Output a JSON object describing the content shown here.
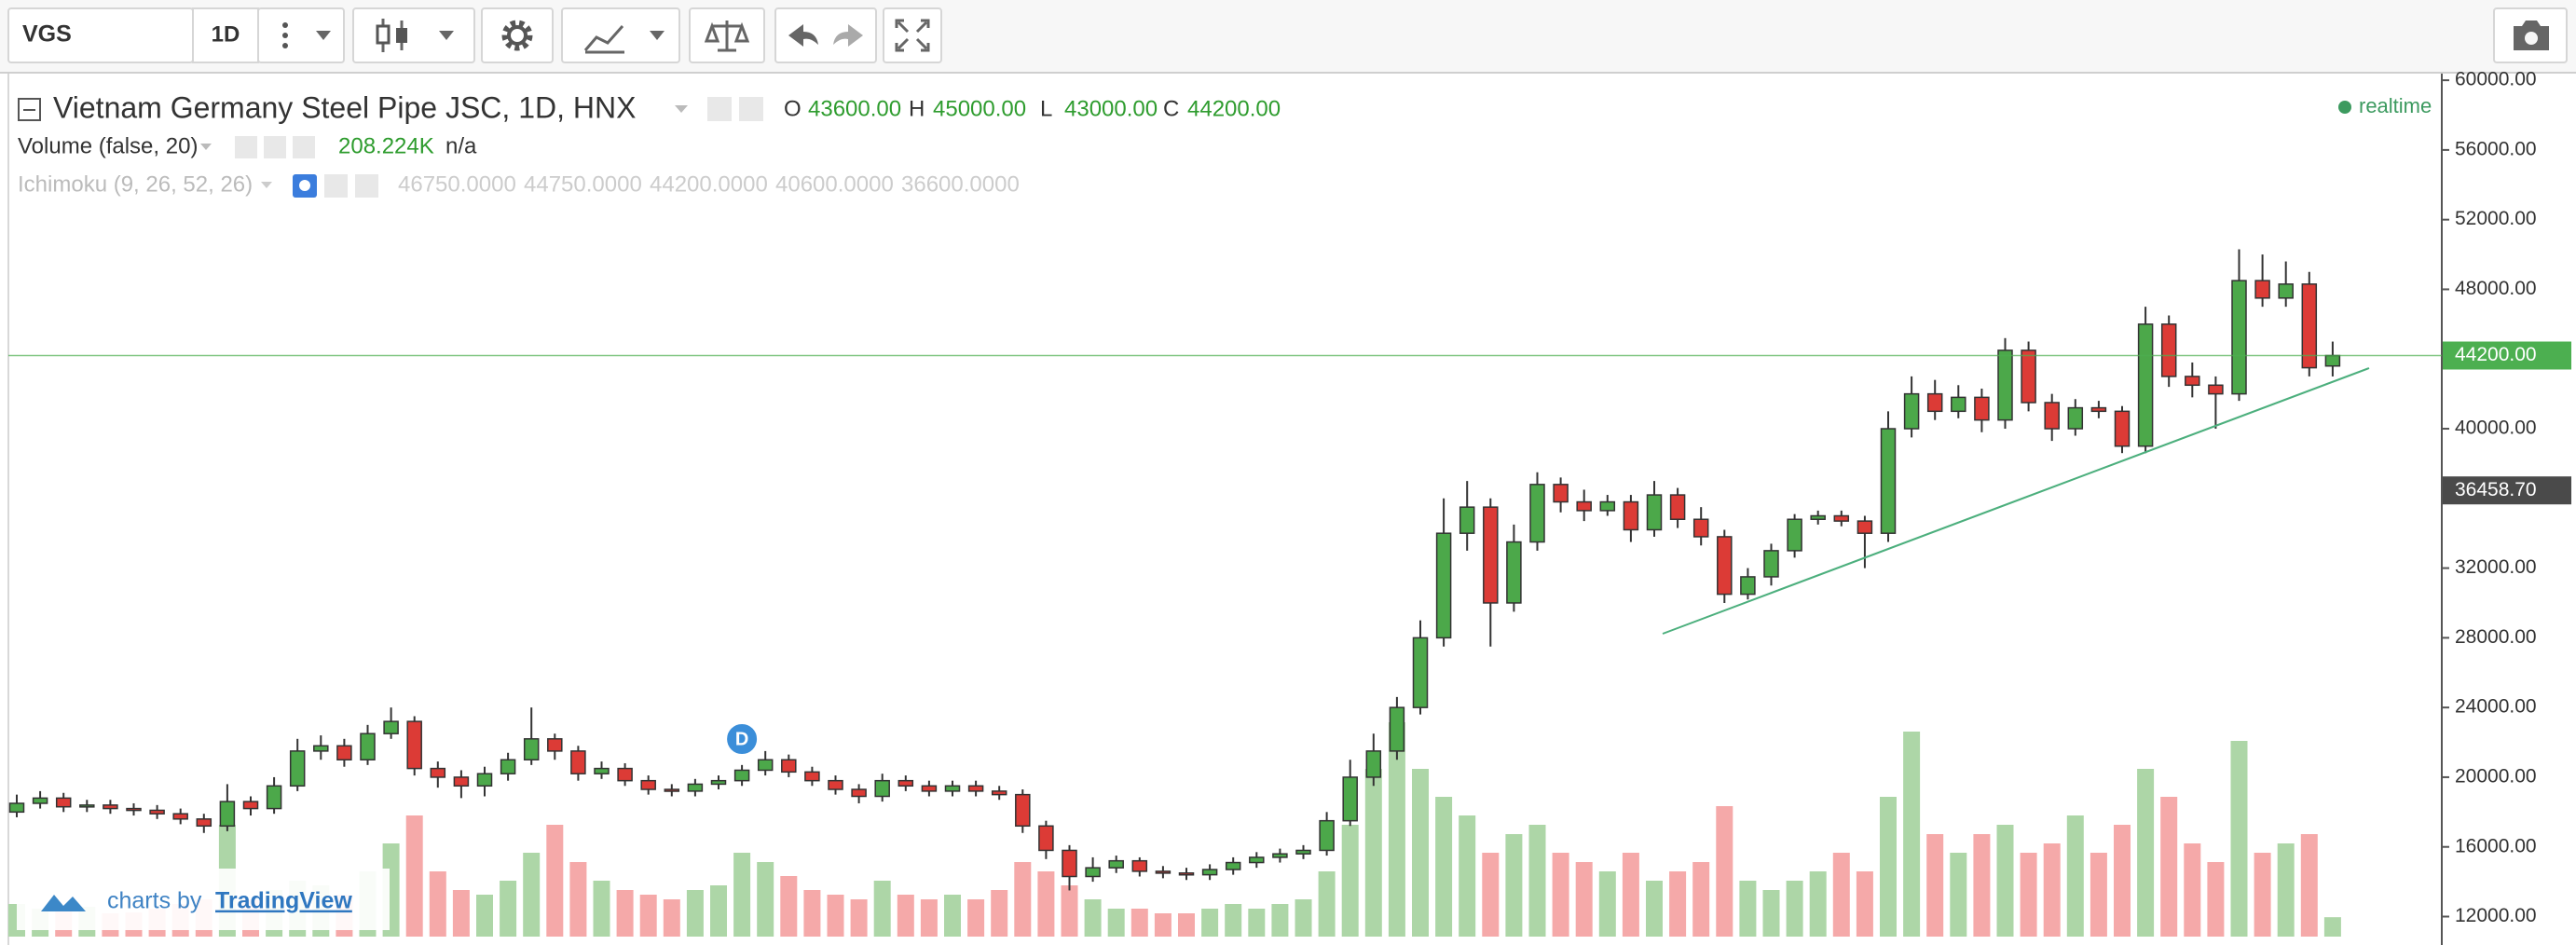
{
  "toolbar": {
    "symbol": "VGS",
    "interval": "1D"
  },
  "legend": {
    "title": "Vietnam Germany Steel Pipe JSC, 1D, HNX",
    "ohlc": [
      {
        "key": "O",
        "value": "43600.00"
      },
      {
        "key": "H",
        "value": "45000.00"
      },
      {
        "key": "L",
        "value": "43000.00"
      },
      {
        "key": "C",
        "value": "44200.00"
      }
    ],
    "volume": {
      "name": "Volume (false, 20)",
      "value": "208.224K",
      "extra": "n/a"
    },
    "ichimoku": {
      "name": "Ichimoku (9, 26, 52, 26)",
      "values": [
        "46750.0000",
        "44750.0000",
        "44200.0000",
        "40600.0000",
        "36600.0000"
      ]
    },
    "status": "realtime"
  },
  "chart_data": {
    "type": "candlestick",
    "open": [
      18000,
      18500,
      18800,
      18300,
      18400,
      18200,
      18100,
      17900,
      17600,
      17200,
      18600,
      18200,
      19500,
      21500,
      21800,
      21000,
      22500,
      23200,
      20500,
      20000,
      19500,
      20200,
      21000,
      22200,
      21500,
      20200,
      20500,
      19800,
      19300,
      19200,
      19600,
      19800,
      20400,
      21000,
      20300,
      19800,
      19300,
      18900,
      19800,
      19500,
      19200,
      19500,
      19200,
      19000,
      17200,
      15800,
      14300,
      14800,
      15200,
      14600,
      14500,
      14400,
      14700,
      15100,
      15400,
      15600,
      15800,
      17500,
      20000,
      21500,
      24000,
      28000,
      34000,
      35500,
      30000,
      33500,
      36800,
      35800,
      35300,
      35800,
      34200,
      36200,
      34800,
      33800,
      30500,
      31500,
      33000,
      34800,
      35000,
      34700,
      34000,
      40000,
      42000,
      41000,
      41800,
      40500,
      44500,
      41500,
      40000,
      41200,
      41000,
      39000,
      46000,
      43000,
      42500,
      42000,
      48500,
      47500,
      48300,
      43600
    ],
    "high": [
      19000,
      19200,
      19100,
      18700,
      18700,
      18500,
      18400,
      18200,
      17900,
      19600,
      18900,
      20000,
      22200,
      22400,
      22200,
      23000,
      24000,
      23500,
      20900,
      20400,
      20600,
      21400,
      24000,
      22500,
      21800,
      20900,
      20800,
      20100,
      19600,
      19900,
      20100,
      20700,
      21500,
      21300,
      20600,
      20100,
      19600,
      20200,
      20100,
      19800,
      19800,
      19800,
      19500,
      19300,
      17500,
      16100,
      15400,
      15500,
      15400,
      14900,
      14800,
      15000,
      15400,
      15700,
      15900,
      16100,
      18000,
      21000,
      22500,
      24600,
      29000,
      36000,
      37000,
      36000,
      34500,
      37500,
      37200,
      36500,
      36200,
      36200,
      37000,
      36600,
      35500,
      34200,
      32000,
      33400,
      35100,
      35300,
      35300,
      35000,
      41000,
      43000,
      42800,
      42500,
      42300,
      45200,
      45000,
      42000,
      41700,
      41600,
      41300,
      47000,
      46500,
      43800,
      43000,
      50300,
      50000,
      49600,
      49000,
      45000
    ],
    "low": [
      17700,
      18200,
      18000,
      18000,
      17900,
      17800,
      17600,
      17300,
      16800,
      16900,
      17800,
      17900,
      19200,
      21000,
      20600,
      20700,
      22200,
      20100,
      19400,
      18800,
      18900,
      19800,
      20700,
      21000,
      19800,
      19900,
      19500,
      19000,
      18900,
      18900,
      19300,
      19500,
      20100,
      20000,
      19500,
      19000,
      18500,
      18600,
      19200,
      18900,
      18900,
      18900,
      18700,
      16800,
      15300,
      13500,
      14000,
      14500,
      14300,
      14200,
      14100,
      14100,
      14400,
      14800,
      15100,
      15300,
      15500,
      17200,
      19500,
      21000,
      23600,
      27500,
      33000,
      27500,
      29500,
      33000,
      35200,
      34700,
      35000,
      33500,
      33800,
      34300,
      33300,
      30000,
      30200,
      31000,
      32600,
      34500,
      34400,
      32000,
      33500,
      39500,
      40500,
      40600,
      39800,
      40000,
      41000,
      39300,
      39600,
      40600,
      38600,
      38600,
      42400,
      41800,
      40000,
      41600,
      47000,
      47000,
      43000,
      43000
    ],
    "close": [
      18500,
      18800,
      18300,
      18400,
      18200,
      18100,
      17900,
      17600,
      17200,
      18600,
      18200,
      19500,
      21500,
      21800,
      21000,
      22500,
      23200,
      20500,
      20000,
      19500,
      20200,
      21000,
      22200,
      21500,
      20200,
      20500,
      19800,
      19300,
      19200,
      19600,
      19800,
      20400,
      21000,
      20300,
      19800,
      19300,
      18900,
      19800,
      19500,
      19200,
      19500,
      19200,
      19000,
      17200,
      15800,
      14300,
      14800,
      15200,
      14600,
      14500,
      14400,
      14700,
      15100,
      15400,
      15600,
      15800,
      17500,
      20000,
      21500,
      24000,
      28000,
      34000,
      35500,
      30000,
      33500,
      36800,
      35800,
      35300,
      35800,
      34200,
      36200,
      34800,
      33800,
      30500,
      31500,
      33000,
      34800,
      35000,
      34700,
      34000,
      40000,
      42000,
      41000,
      41800,
      40500,
      44500,
      41500,
      40000,
      41200,
      41000,
      39000,
      46000,
      43000,
      42500,
      42000,
      48500,
      47500,
      48300,
      43500,
      44200
    ],
    "volume": [
      350,
      300,
      280,
      320,
      250,
      260,
      300,
      350,
      400,
      1200,
      400,
      500,
      600,
      550,
      450,
      700,
      1000,
      1300,
      700,
      500,
      450,
      600,
      900,
      1200,
      800,
      600,
      500,
      450,
      400,
      500,
      550,
      900,
      800,
      650,
      500,
      450,
      400,
      600,
      450,
      400,
      450,
      400,
      500,
      800,
      700,
      550,
      400,
      300,
      300,
      250,
      250,
      300,
      350,
      300,
      350,
      400,
      700,
      1200,
      1800,
      2300,
      1800,
      1500,
      1300,
      900,
      1100,
      1200,
      900,
      800,
      700,
      900,
      600,
      700,
      800,
      1400,
      600,
      500,
      600,
      700,
      900,
      700,
      1500,
      2200,
      1100,
      900,
      1100,
      1200,
      900,
      1000,
      1300,
      900,
      1200,
      1800,
      1500,
      1000,
      800,
      2100,
      900,
      1000,
      1100,
      208.224
    ],
    "up_color": "#4ca84a",
    "down_color": "#dc3b36",
    "up_volume_color": "#add6a7",
    "down_volume_color": "#f5a9a9",
    "ylim": [
      10850,
      60380
    ],
    "yticks": [
      {
        "value": 60000,
        "label": "60000.00"
      },
      {
        "value": 56000,
        "label": "56000.00"
      },
      {
        "value": 52000,
        "label": "52000.00"
      },
      {
        "value": 48000,
        "label": "48000.00"
      },
      {
        "value": 44000,
        "label": "44000.00"
      },
      {
        "value": 40000,
        "label": "40000.00"
      },
      {
        "value": 36000,
        "label": "36000.00"
      },
      {
        "value": 32000,
        "label": "32000.00"
      },
      {
        "value": 28000,
        "label": "28000.00"
      },
      {
        "value": 24000,
        "label": "24000.00"
      },
      {
        "value": 20000,
        "label": "20000.00"
      },
      {
        "value": 16000,
        "label": "16000.00"
      },
      {
        "value": 12000,
        "label": "12000.00"
      }
    ],
    "last_price": {
      "value": 44200,
      "label": "44200.00",
      "color": "#4caf50"
    },
    "marker_line": {
      "value": 36458.7,
      "label": "36458.70",
      "color": "#4a4a4a"
    },
    "event": {
      "index": 31,
      "label": "D"
    }
  },
  "watermark": {
    "prefix": "charts by",
    "brand": "TradingView"
  }
}
